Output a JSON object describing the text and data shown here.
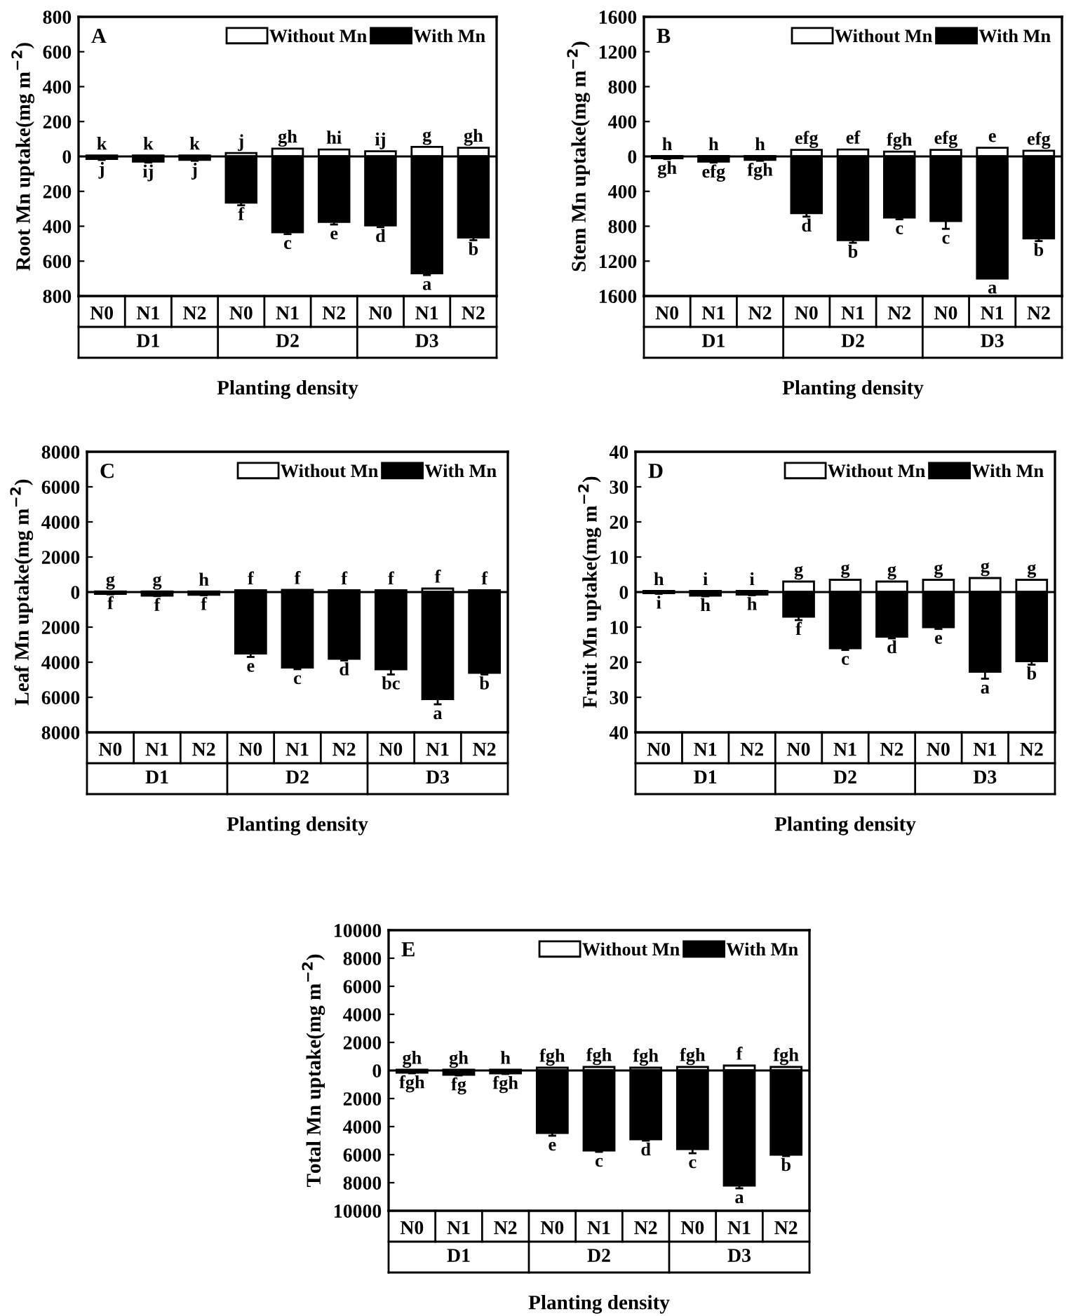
{
  "chart_data": [
    {
      "type": "bar",
      "stacked": true,
      "title": "A",
      "ylabel": "Root Mn uptake(mg m$^{−2}$)",
      "xlabel": "Planting density",
      "categories": [
        "N0",
        "N1",
        "N2",
        "N0",
        "N1",
        "N2",
        "N0",
        "N1",
        "N2"
      ],
      "annotations": [
        "D1",
        "D2",
        "D3"
      ],
      "series": [
        {
          "name": "Without Mn",
          "color": "#ffffff",
          "values": [
            5,
            5,
            5,
            20,
            45,
            40,
            30,
            55,
            50
          ],
          "value_labels": [
            "k",
            "k",
            "k",
            "j",
            "gh",
            "hi",
            "ij",
            "g",
            "gh"
          ]
        },
        {
          "name": "With Mn",
          "color": "#000000",
          "values": [
            -15,
            -30,
            -20,
            -265,
            -435,
            -375,
            -395,
            -670,
            -465
          ],
          "errors": [
            5,
            5,
            5,
            15,
            10,
            15,
            10,
            10,
            15
          ],
          "value_labels": [
            "j",
            "ij",
            "j",
            "f",
            "c",
            "e",
            "d",
            "a",
            "b"
          ]
        }
      ],
      "ylim": [
        -800,
        800
      ],
      "yticks": [
        {
          "value": -800,
          "label": "800"
        },
        {
          "value": -600,
          "label": "600"
        },
        {
          "value": -400,
          "label": "400"
        },
        {
          "value": -200,
          "label": "200"
        },
        0,
        200,
        400,
        600,
        800
      ],
      "ref_lines": [
        {
          "axis": "y",
          "value": 0,
          "color": "#000000"
        }
      ],
      "legend": "top right"
    },
    {
      "type": "bar",
      "stacked": true,
      "title": "B",
      "ylabel": "Stem Mn uptake(mg m$^{−2}$)",
      "xlabel": "Planting density",
      "categories": [
        "N0",
        "N1",
        "N2",
        "N0",
        "N1",
        "N2",
        "N0",
        "N1",
        "N2"
      ],
      "annotations": [
        "D1",
        "D2",
        "D3"
      ],
      "series": [
        {
          "name": "Without Mn",
          "color": "#ffffff",
          "values": [
            5,
            5,
            5,
            75,
            80,
            55,
            75,
            100,
            65
          ],
          "value_labels": [
            "h",
            "h",
            "h",
            "efg",
            "ef",
            "fgh",
            "efg",
            "e",
            "efg"
          ]
        },
        {
          "name": "With Mn",
          "color": "#000000",
          "values": [
            -20,
            -60,
            -40,
            -650,
            -960,
            -700,
            -740,
            -1400,
            -940
          ],
          "errors": [
            10,
            10,
            10,
            40,
            30,
            20,
            90,
            null,
            30
          ],
          "value_labels": [
            "gh",
            "efg",
            "fgh",
            "d",
            "b",
            "c",
            "c",
            "a",
            "b"
          ]
        }
      ],
      "ylim": [
        -1600,
        1600
      ],
      "yticks": [
        {
          "value": -1600,
          "label": "1600"
        },
        {
          "value": -1200,
          "label": "1200"
        },
        {
          "value": -800,
          "label": "800"
        },
        {
          "value": -400,
          "label": "400"
        },
        0,
        400,
        800,
        1200,
        1600
      ],
      "ref_lines": [
        {
          "axis": "y",
          "value": 0,
          "color": "#000000"
        }
      ],
      "legend": "top right"
    },
    {
      "type": "bar",
      "stacked": true,
      "title": "C",
      "ylabel": "Leaf Mn uptake(mg m$^{−2}$)",
      "xlabel": "Planting density",
      "categories": [
        "N0",
        "N1",
        "N2",
        "N0",
        "N1",
        "N2",
        "N0",
        "N1",
        "N2"
      ],
      "annotations": [
        "D1",
        "D2",
        "D3"
      ],
      "series": [
        {
          "name": "Without Mn",
          "color": "#ffffff",
          "values": [
            30,
            30,
            30,
            100,
            120,
            100,
            100,
            200,
            100
          ],
          "value_labels": [
            "g",
            "g",
            "h",
            "f",
            "f",
            "f",
            "f",
            "f",
            "f"
          ]
        },
        {
          "name": "With Mn",
          "color": "#000000",
          "values": [
            -100,
            -200,
            -150,
            -3500,
            -4300,
            -3800,
            -4400,
            -6100,
            -4600
          ],
          "errors": [
            30,
            30,
            30,
            200,
            100,
            100,
            300,
            300,
            100
          ],
          "value_labels": [
            "f",
            "f",
            "f",
            "e",
            "c",
            "d",
            "bc",
            "a",
            "b"
          ]
        }
      ],
      "ylim": [
        -8000,
        8000
      ],
      "yticks": [
        {
          "value": -8000,
          "label": "8000"
        },
        {
          "value": -6000,
          "label": "6000"
        },
        {
          "value": -4000,
          "label": "4000"
        },
        {
          "value": -2000,
          "label": "2000"
        },
        0,
        2000,
        4000,
        6000,
        8000
      ],
      "ref_lines": [
        {
          "axis": "y",
          "value": 0,
          "color": "#000000"
        }
      ],
      "legend": "top right"
    },
    {
      "type": "bar",
      "stacked": true,
      "title": "D",
      "ylabel": "Fruit Mn uptake(mg m$^{−2}$)",
      "xlabel": "Planting density",
      "categories": [
        "N0",
        "N1",
        "N2",
        "N0",
        "N1",
        "N2",
        "N0",
        "N1",
        "N2"
      ],
      "annotations": [
        "D1",
        "D2",
        "D3"
      ],
      "series": [
        {
          "name": "Without Mn",
          "color": "#ffffff",
          "values": [
            0.3,
            0.3,
            0.3,
            3,
            3.5,
            3,
            3.5,
            4,
            3.5
          ],
          "value_labels": [
            "h",
            "i",
            "i",
            "g",
            "g",
            "g",
            "g",
            "g",
            "g"
          ]
        },
        {
          "name": "With Mn",
          "color": "#000000",
          "values": [
            -0.3,
            -1,
            -0.7,
            -7,
            -16,
            -12.7,
            -10,
            -22.7,
            -19.7
          ],
          "errors": [
            0.2,
            0.2,
            0.2,
            1,
            0.5,
            0.5,
            0.5,
            2,
            1
          ],
          "value_labels": [
            "i",
            "h",
            "h",
            "f",
            "c",
            "d",
            "e",
            "a",
            "b"
          ]
        }
      ],
      "ylim": [
        -40,
        40
      ],
      "yticks": [
        {
          "value": -40,
          "label": "40"
        },
        {
          "value": -30,
          "label": "30"
        },
        {
          "value": -20,
          "label": "20"
        },
        {
          "value": -10,
          "label": "10"
        },
        0,
        10,
        20,
        30,
        40
      ],
      "ref_lines": [
        {
          "axis": "y",
          "value": 0,
          "color": "#000000"
        }
      ],
      "legend": "top right"
    },
    {
      "type": "bar",
      "stacked": true,
      "title": "E",
      "ylabel": "Total Mn uptake(mg m$^{−2}$)",
      "xlabel": "Planting density",
      "categories": [
        "N0",
        "N1",
        "N2",
        "N0",
        "N1",
        "N2",
        "N0",
        "N1",
        "N2"
      ],
      "annotations": [
        "D1",
        "D2",
        "D3"
      ],
      "series": [
        {
          "name": "Without Mn",
          "color": "#ffffff",
          "values": [
            50,
            50,
            50,
            200,
            250,
            200,
            250,
            350,
            250
          ],
          "value_labels": [
            "gh",
            "gh",
            "h",
            "fgh",
            "fgh",
            "fgh",
            "fgh",
            "f",
            "fgh"
          ]
        },
        {
          "name": "With Mn",
          "color": "#000000",
          "values": [
            -150,
            -300,
            -200,
            -4450,
            -5700,
            -4900,
            -5600,
            -8200,
            -6000
          ],
          "errors": [
            50,
            50,
            50,
            200,
            100,
            100,
            300,
            200,
            100
          ],
          "value_labels": [
            "fgh",
            "fg",
            "fgh",
            "e",
            "c",
            "d",
            "c",
            "a",
            "b"
          ]
        }
      ],
      "ylim": [
        -10000,
        10000
      ],
      "yticks": [
        {
          "value": -10000,
          "label": "10000"
        },
        {
          "value": -8000,
          "label": "8000"
        },
        {
          "value": -6000,
          "label": "6000"
        },
        {
          "value": -4000,
          "label": "4000"
        },
        {
          "value": -2000,
          "label": "2000"
        },
        0,
        2000,
        4000,
        6000,
        8000,
        {
          "value": 10000,
          "label": "10000"
        }
      ],
      "ref_lines": [
        {
          "axis": "y",
          "value": 0,
          "color": "#000000"
        }
      ],
      "legend": "top right"
    }
  ]
}
